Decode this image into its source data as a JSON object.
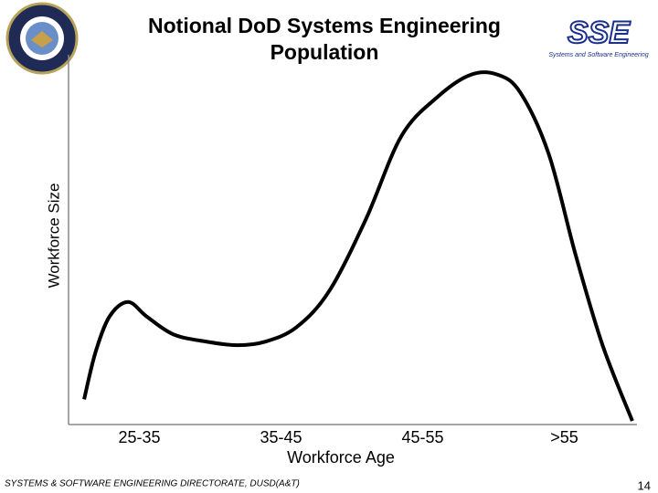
{
  "chart_data": {
    "type": "line",
    "title": "Notional DoD Systems Engineering Population",
    "x_label": "Workforce Age",
    "y_label": "Workforce Size",
    "xlim": [
      0,
      4
    ],
    "ylim": [
      0,
      100
    ],
    "xticks": [
      {
        "value": 0.5,
        "label": "25-35"
      },
      {
        "value": 1.5,
        "label": "35-45"
      },
      {
        "value": 2.5,
        "label": "45-55"
      },
      {
        "value": 3.5,
        "label": ">55"
      }
    ],
    "x": [
      0.11,
      0.19,
      0.29,
      0.42,
      0.55,
      0.74,
      0.97,
      1.19,
      1.39,
      1.61,
      1.84,
      2.1,
      2.35,
      2.61,
      2.84,
      3.03,
      3.19,
      3.39,
      3.58,
      3.77,
      3.98
    ],
    "series": [
      {
        "color": "#000000",
        "values": [
          7,
          20,
          30,
          34,
          30,
          25,
          23,
          22,
          23,
          27,
          37,
          57,
          80,
          91,
          97,
          97,
          92,
          75,
          47,
          22,
          1
        ]
      }
    ]
  },
  "logo": {
    "text": "SSE",
    "caption": "Systems and Software Engineering"
  },
  "footer": "SYSTEMS & SOFTWARE ENGINEERING DIRECTORATE, DUSD(A&T)",
  "page_number": "14"
}
